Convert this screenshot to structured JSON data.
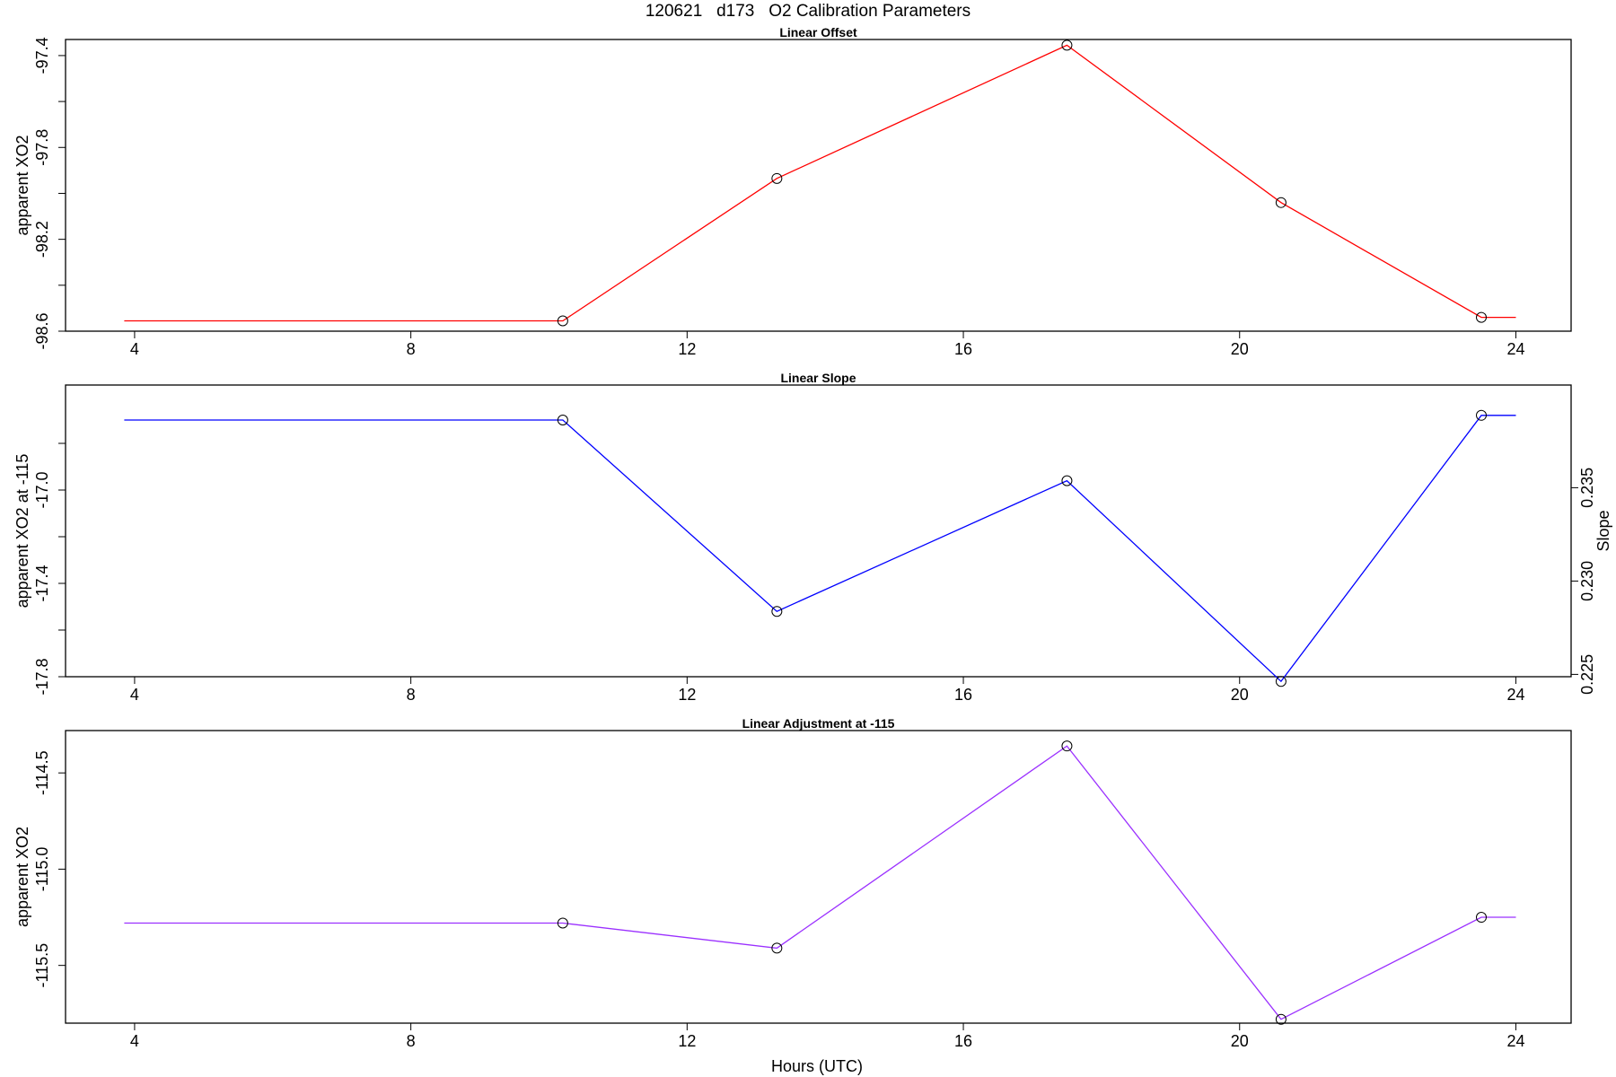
{
  "figure": {
    "title": "120621   d173   O2 Calibration Parameters",
    "xlabel": "Hours (UTC)"
  },
  "chart_data": [
    {
      "type": "line",
      "title": "Linear Offset",
      "ylabel": "apparent XO2",
      "xlabel": "",
      "xlim": [
        3.0,
        24.8
      ],
      "ylim": [
        -98.6,
        -97.33
      ],
      "xticks": [
        4,
        8,
        12,
        16,
        20,
        24
      ],
      "xtick_labels": [
        "4",
        "8",
        "12",
        "16",
        "20",
        "24"
      ],
      "yticks": [
        -97.4,
        -97.8,
        -98.2,
        -98.6
      ],
      "ytick_labels": [
        "-97.4",
        "-97.8",
        "-98.2",
        "-98.6"
      ],
      "yminor": [
        -97.6,
        -98.0,
        -98.4
      ],
      "color": "#ff0000",
      "series": [
        {
          "x": [
            3.85,
            10.2,
            13.3,
            17.5,
            20.6,
            23.5,
            24.0
          ],
          "y": [
            -98.555,
            -98.555,
            -97.935,
            -97.355,
            -98.04,
            -98.54,
            -98.54
          ],
          "markers": [
            false,
            true,
            true,
            true,
            true,
            true,
            false
          ]
        }
      ]
    },
    {
      "type": "line",
      "title": "Linear Slope",
      "ylabel": "apparent XO2 at -115",
      "y2label": "Slope",
      "xlabel": "",
      "xlim": [
        3.0,
        24.8
      ],
      "ylim": [
        -17.8,
        -16.55
      ],
      "xticks": [
        4,
        8,
        12,
        16,
        20,
        24
      ],
      "xtick_labels": [
        "4",
        "8",
        "12",
        "16",
        "20",
        "24"
      ],
      "yticks": [
        -17.0,
        -17.4,
        -17.8
      ],
      "ytick_labels": [
        "-17.0",
        "-17.4",
        "-17.8"
      ],
      "yminor": [
        -16.8,
        -17.2,
        -17.6
      ],
      "y2ticks": [
        0.235,
        0.23,
        0.225
      ],
      "y2tick_labels": [
        "0.235",
        "0.230",
        "0.225"
      ],
      "y2map": {
        "a": [
          0.235,
          -16.99
        ],
        "b": [
          0.225,
          -17.79
        ]
      },
      "color": "#0000ff",
      "series": [
        {
          "x": [
            3.85,
            10.2,
            13.3,
            17.5,
            20.6,
            23.5,
            24.0
          ],
          "y": [
            -16.7,
            -16.7,
            -17.52,
            -16.96,
            -17.82,
            -16.68,
            -16.68
          ],
          "markers": [
            false,
            true,
            true,
            true,
            true,
            true,
            false
          ]
        }
      ]
    },
    {
      "type": "line",
      "title": "Linear Adjustment at -115",
      "ylabel": "apparent XO2",
      "xlabel": "Hours (UTC)",
      "xlim": [
        3.0,
        24.8
      ],
      "ylim": [
        -115.8,
        -114.28
      ],
      "xticks": [
        4,
        8,
        12,
        16,
        20,
        24
      ],
      "xtick_labels": [
        "4",
        "8",
        "12",
        "16",
        "20",
        "24"
      ],
      "yticks": [
        -114.5,
        -115.0,
        -115.5
      ],
      "ytick_labels": [
        "-114.5",
        "-115.0",
        "-115.5"
      ],
      "yminor": [],
      "color": "#9b30ff",
      "series": [
        {
          "x": [
            3.85,
            10.2,
            13.3,
            17.5,
            20.6,
            23.5,
            24.0
          ],
          "y": [
            -115.28,
            -115.28,
            -115.41,
            -114.36,
            -115.78,
            -115.25,
            -115.25
          ],
          "markers": [
            false,
            true,
            true,
            true,
            true,
            true,
            false
          ]
        }
      ]
    }
  ]
}
